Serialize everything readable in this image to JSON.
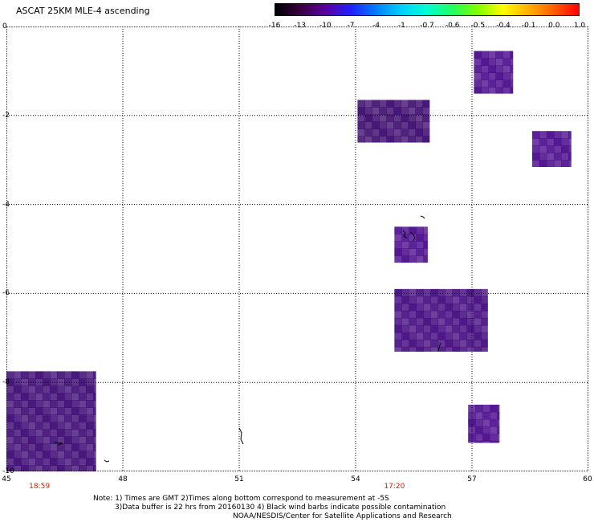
{
  "title": "ASCAT 25KM MLE-4 ascending",
  "colorbar": {
    "labels": [
      "-16",
      "-13",
      "-10",
      "-7",
      "-4",
      "-1",
      "-0.7",
      "-0.6",
      "-0.5",
      "-0.4",
      "-0.1",
      "0.0",
      "1.0"
    ],
    "colors": [
      "#000000",
      "#3a0040",
      "#5a00a0",
      "#2020ff",
      "#0080ff",
      "#00d0ff",
      "#00ffd0",
      "#20ff60",
      "#80ff00",
      "#ffff00",
      "#ffb000",
      "#ff6000",
      "#ff0000"
    ]
  },
  "axes": {
    "x_ticks": [
      "45",
      "48",
      "51",
      "54",
      "57",
      "60"
    ],
    "y_ticks": [
      "0",
      "-2",
      "-4",
      "-6",
      "-8",
      "-10"
    ],
    "x_range": [
      45,
      60
    ],
    "y_range": [
      0,
      -10
    ]
  },
  "pass_times": [
    {
      "label": "18:59",
      "lon": 45.85
    },
    {
      "label": "17:20",
      "lon": 55.0
    }
  ],
  "notes": [
    "Note: 1) Times are GMT 2)Times along bottom correspond to measurement at -5S",
    "3)Data buffer is 22 hrs from 20160130 4) Black wind barbs indicate possible contamination",
    "NOAA/NESDIS/Center for Satellite Applications and Research"
  ],
  "data_regions": [
    {
      "lon0": 57.05,
      "lon1": 58.05,
      "lat0": -0.55,
      "lat1": -1.5,
      "color": "#4a0a8c"
    },
    {
      "lon0": 54.05,
      "lon1": 55.9,
      "lat0": -1.65,
      "lat1": -2.6,
      "color": "#3c0a6e"
    },
    {
      "lon0": 58.55,
      "lon1": 59.55,
      "lat0": -2.35,
      "lat1": -3.15,
      "color": "#4a0a8c"
    },
    {
      "lon0": 55.0,
      "lon1": 55.85,
      "lat0": -4.5,
      "lat1": -5.3,
      "color": "#4a0a8c"
    },
    {
      "lon0": 55.0,
      "lon1": 57.4,
      "lat0": -5.9,
      "lat1": -7.3,
      "color": "#440a80"
    },
    {
      "lon0": 45.0,
      "lon1": 47.3,
      "lat0": -7.75,
      "lat1": -10.0,
      "color": "#3e0a74"
    },
    {
      "lon0": 56.9,
      "lon1": 57.7,
      "lat0": -8.5,
      "lat1": -9.35,
      "color": "#4a0a8c"
    }
  ]
}
